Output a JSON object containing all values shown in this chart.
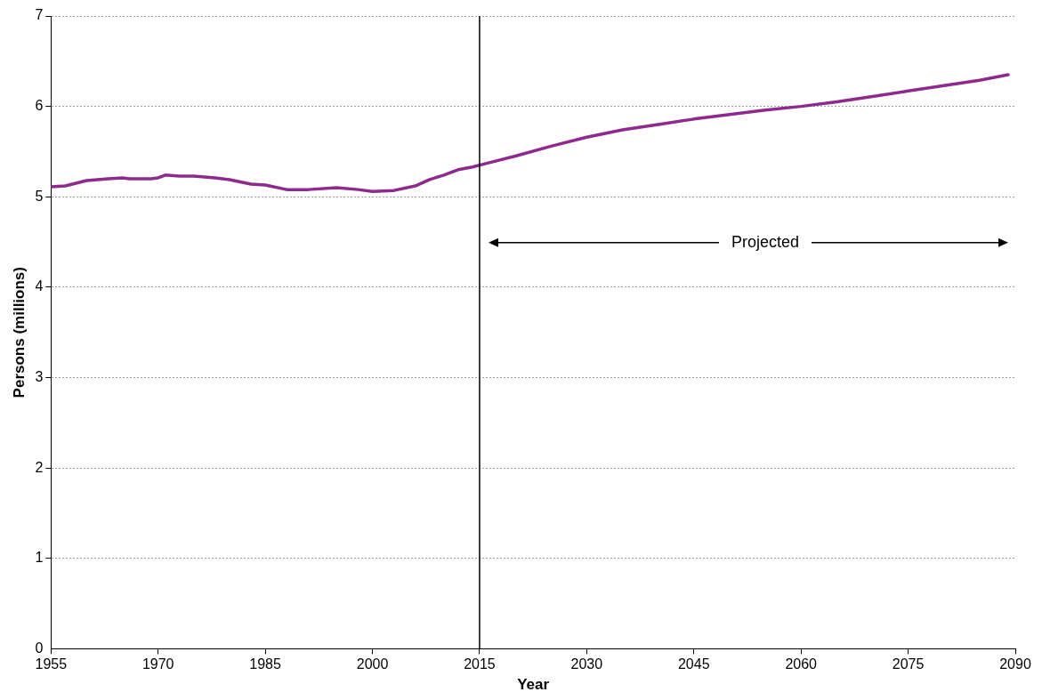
{
  "chart_data": {
    "type": "line",
    "xlabel": "Year",
    "ylabel": "Persons (millions)",
    "x": [
      1955,
      1957,
      1960,
      1963,
      1965,
      1966,
      1969,
      1970,
      1971,
      1973,
      1975,
      1978,
      1980,
      1983,
      1985,
      1988,
      1991,
      1995,
      1998,
      2000,
      2003,
      2006,
      2008,
      2010,
      2012,
      2014,
      2016,
      2020,
      2025,
      2030,
      2035,
      2040,
      2045,
      2050,
      2055,
      2060,
      2065,
      2070,
      2075,
      2080,
      2085,
      2089
    ],
    "series": [
      {
        "color": "#8e2a8e",
        "values": [
          5.11,
          5.12,
          5.18,
          5.2,
          5.21,
          5.2,
          5.2,
          5.21,
          5.24,
          5.23,
          5.23,
          5.21,
          5.19,
          5.14,
          5.13,
          5.08,
          5.08,
          5.1,
          5.08,
          5.06,
          5.07,
          5.12,
          5.19,
          5.24,
          5.3,
          5.33,
          5.37,
          5.45,
          5.56,
          5.66,
          5.74,
          5.8,
          5.86,
          5.91,
          5.96,
          6.0,
          6.05,
          6.11,
          6.17,
          6.23,
          6.29,
          6.35
        ]
      }
    ],
    "xlim": [
      1955,
      2090
    ],
    "xticks": [
      1955,
      1970,
      1985,
      2000,
      2015,
      2030,
      2045,
      2060,
      2075,
      2090
    ],
    "ylim": [
      0,
      7
    ],
    "yticks": [
      0,
      1,
      2,
      3,
      4,
      5,
      6,
      7
    ],
    "grid": "y",
    "legend": false,
    "marker": "none",
    "line_style": "solid",
    "ref_lines": [
      {
        "axis": "x",
        "value": 2015,
        "color": "#000000"
      }
    ],
    "annotations": [
      "Projected"
    ]
  }
}
